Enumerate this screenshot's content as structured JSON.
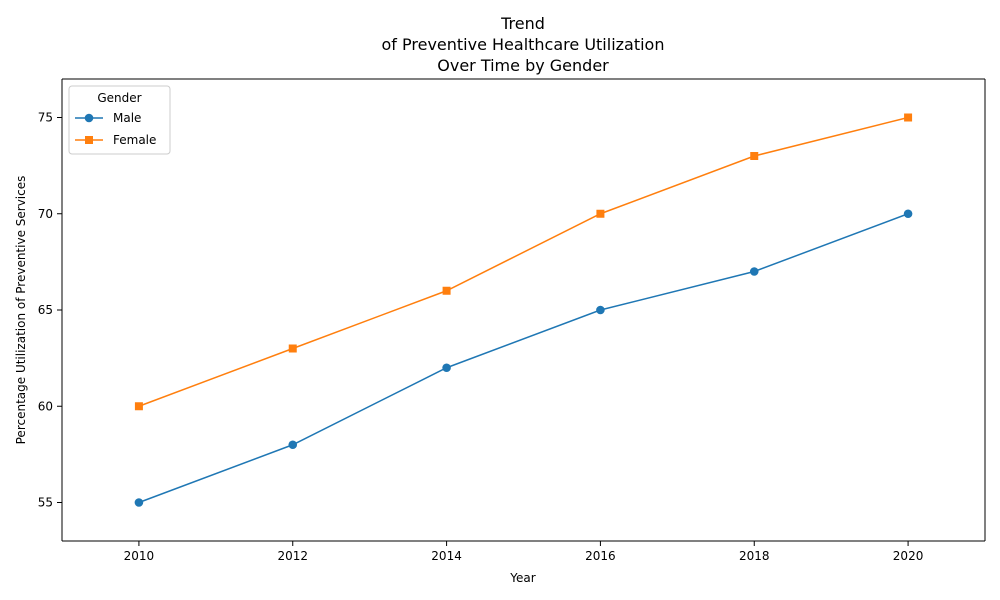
{
  "chart_data": {
    "type": "line",
    "title_lines": [
      "Trend",
      "of Preventive Healthcare Utilization",
      "Over Time by Gender"
    ],
    "xlabel": "Year",
    "ylabel": "Percentage Utilization of Preventive Services",
    "x": [
      2010,
      2012,
      2014,
      2016,
      2018,
      2020
    ],
    "xlim": [
      2009,
      2021
    ],
    "ylim": [
      53,
      77
    ],
    "xticks": [
      2010,
      2012,
      2014,
      2016,
      2018,
      2020
    ],
    "yticks": [
      55,
      60,
      65,
      70,
      75
    ],
    "grid": false,
    "legend": {
      "title": "Gender",
      "position": "top-left"
    },
    "series": [
      {
        "name": "Male",
        "values": [
          55,
          58,
          62,
          65,
          67,
          70
        ],
        "color": "#1f77b4",
        "marker": "circle"
      },
      {
        "name": "Female",
        "values": [
          60,
          63,
          66,
          70,
          73,
          75
        ],
        "color": "#ff7f0e",
        "marker": "square"
      }
    ]
  }
}
